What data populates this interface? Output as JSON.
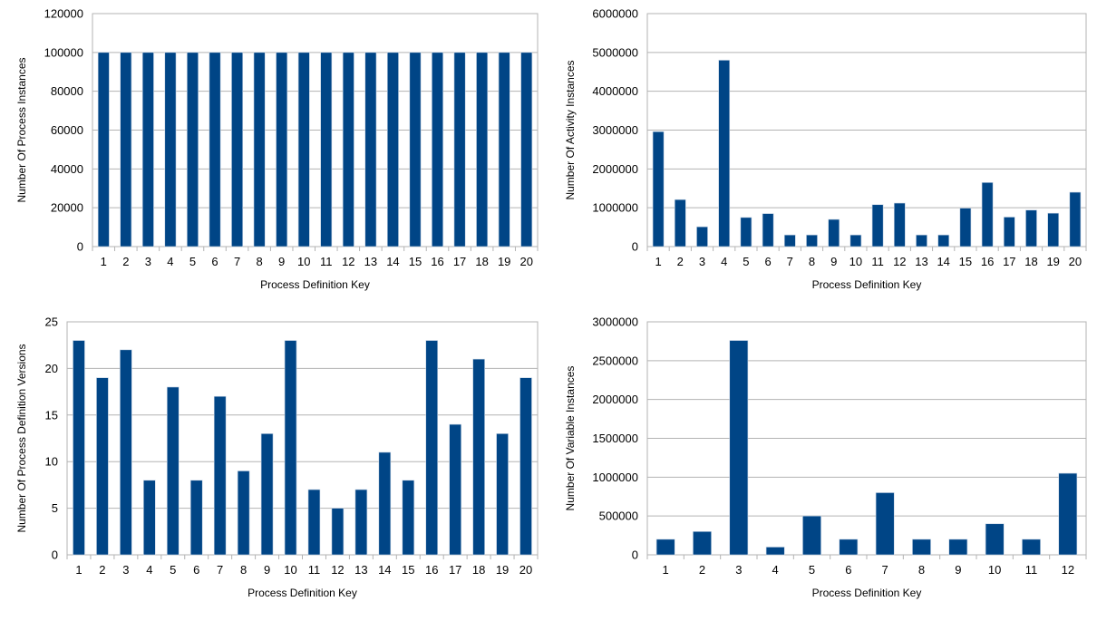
{
  "colors": {
    "bar": "#004586",
    "grid": "#b3b3b3",
    "bar_edge": "#c8d6e6"
  },
  "chart_data": [
    {
      "type": "bar",
      "xlabel": "Process Definition Key",
      "ylabel": "Number Of Process Instances",
      "ylim": [
        0,
        120000
      ],
      "yticks": [
        0,
        20000,
        40000,
        60000,
        80000,
        100000,
        120000
      ],
      "grid": true,
      "categories": [
        "1",
        "2",
        "3",
        "4",
        "5",
        "6",
        "7",
        "8",
        "9",
        "10",
        "11",
        "12",
        "13",
        "14",
        "15",
        "16",
        "17",
        "18",
        "19",
        "20"
      ],
      "values": [
        100000,
        100000,
        100000,
        100000,
        100000,
        100000,
        100000,
        100000,
        100000,
        100000,
        100000,
        100000,
        100000,
        100000,
        100000,
        100000,
        100000,
        100000,
        100000,
        100000
      ]
    },
    {
      "type": "bar",
      "xlabel": "Process Definition Key",
      "ylabel": "Number Of Activity Instances",
      "ylim": [
        0,
        6000000
      ],
      "yticks": [
        0,
        1000000,
        2000000,
        3000000,
        4000000,
        5000000,
        6000000
      ],
      "grid": true,
      "categories": [
        "1",
        "2",
        "3",
        "4",
        "5",
        "6",
        "7",
        "8",
        "9",
        "10",
        "11",
        "12",
        "13",
        "14",
        "15",
        "16",
        "17",
        "18",
        "19",
        "20"
      ],
      "values": [
        2960000,
        1210000,
        510000,
        4800000,
        750000,
        850000,
        300000,
        300000,
        700000,
        300000,
        1080000,
        1120000,
        300000,
        300000,
        990000,
        1650000,
        760000,
        940000,
        860000,
        1400000
      ]
    },
    {
      "type": "bar",
      "xlabel": "Process Definition Key",
      "ylabel": "Number Of Process Definition Versions",
      "ylim": [
        0,
        25
      ],
      "yticks": [
        0,
        5,
        10,
        15,
        20,
        25
      ],
      "grid": true,
      "categories": [
        "1",
        "2",
        "3",
        "4",
        "5",
        "6",
        "7",
        "8",
        "9",
        "10",
        "11",
        "12",
        "13",
        "14",
        "15",
        "16",
        "17",
        "18",
        "19",
        "20"
      ],
      "values": [
        23,
        19,
        22,
        8,
        18,
        8,
        17,
        9,
        13,
        23,
        7,
        5,
        7,
        11,
        8,
        23,
        14,
        21,
        13,
        19
      ]
    },
    {
      "type": "bar",
      "xlabel": "Process Definition Key",
      "ylabel": "Number Of Variable Instances",
      "ylim": [
        0,
        3000000
      ],
      "yticks": [
        0,
        500000,
        1000000,
        1500000,
        2000000,
        2500000,
        3000000
      ],
      "grid": true,
      "categories": [
        "1",
        "2",
        "3",
        "4",
        "5",
        "6",
        "7",
        "8",
        "9",
        "10",
        "11",
        "12"
      ],
      "values": [
        200000,
        300000,
        2760000,
        100000,
        500000,
        200000,
        800000,
        200000,
        200000,
        400000,
        200000,
        1050000
      ]
    }
  ]
}
